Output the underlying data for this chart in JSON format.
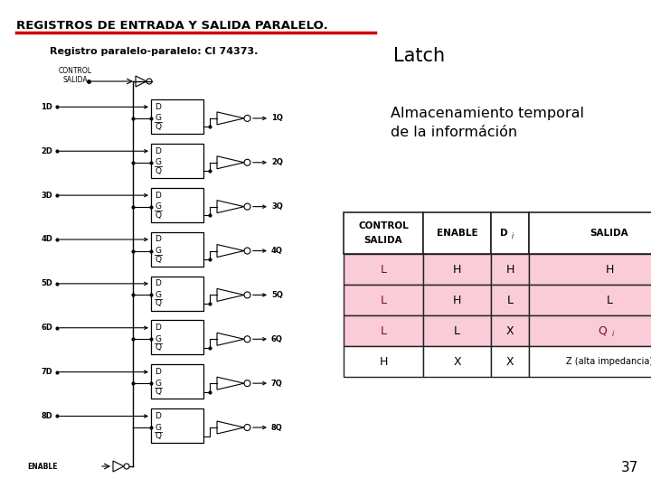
{
  "bg_color": "#ffffff",
  "title_text": "REGISTROS DE ENTRADA Y SALIDA PARALELO.",
  "title_color": "#000000",
  "title_underline_color": "#cc0000",
  "subtitle_text": "Registro paralelo-paralelo: CI 74373.",
  "latch_text": "Latch",
  "desc_text": "Almacenamiento temporal\nde la információn",
  "page_number": "37",
  "table_header": [
    "CONTROL\nSALIDA",
    "ENABLE",
    "Di",
    "SALIDA"
  ],
  "table_rows": [
    [
      "L",
      "H",
      "H",
      "H"
    ],
    [
      "L",
      "H",
      "L",
      "L"
    ],
    [
      "L",
      "L",
      "X",
      "Qi"
    ],
    [
      "H",
      "X",
      "X",
      "Z (alta impedancia)"
    ]
  ],
  "table_row_bg_pink": "#f9ccd8",
  "table_row_bg_white": "#ffffff",
  "table_border_color": "#222222",
  "n_latches": 8,
  "latch_labels_d": [
    "1D",
    "2D",
    "3D",
    "4D",
    "5D",
    "6D",
    "7D",
    "8D"
  ],
  "latch_labels_q": [
    "1Q",
    "2Q",
    "3Q",
    "4Q",
    "5Q",
    "6Q",
    "7Q",
    "8Q"
  ]
}
